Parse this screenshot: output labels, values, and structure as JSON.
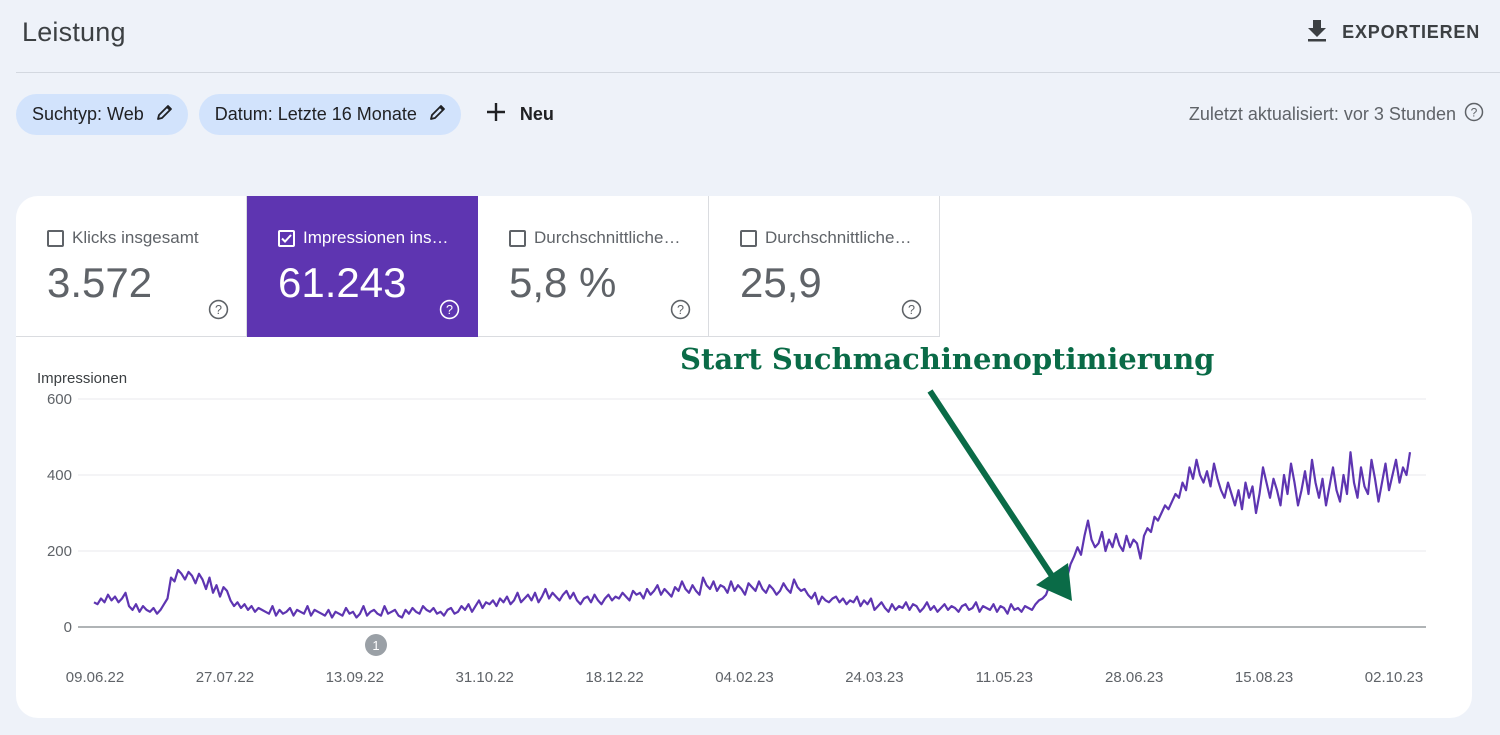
{
  "header": {
    "title": "Leistung",
    "export_label": "EXPORTIEREN"
  },
  "filters": {
    "chips": [
      {
        "label": "Suchtyp: Web"
      },
      {
        "label": "Datum: Letzte 16 Monate"
      }
    ],
    "new_label": "Neu",
    "updated": "Zuletzt aktualisiert: vor 3 Stunden"
  },
  "metrics": [
    {
      "label": "Klicks insgesamt",
      "value": "3.572",
      "checked": false
    },
    {
      "label": "Impressionen ins…",
      "value": "61.243",
      "checked": true
    },
    {
      "label": "Durchschnittliche…",
      "value": "5,8 %",
      "checked": false
    },
    {
      "label": "Durchschnittliche…",
      "value": "25,9",
      "checked": false
    }
  ],
  "annotation": {
    "text": "Start Suchmachinenoptimierung",
    "marker": "1",
    "color": "#0a6b47"
  },
  "colors": {
    "accent": "#5e35b1",
    "chip": "#d2e3fc",
    "line": "#5e35b1"
  },
  "chart_data": {
    "type": "line",
    "title": "",
    "ylabel": "Impressionen",
    "ylim": [
      0,
      600
    ],
    "yticks": [
      "0",
      "200",
      "400",
      "600"
    ],
    "xtick_labels": [
      "09.06.22",
      "27.07.22",
      "13.09.22",
      "31.10.22",
      "18.12.22",
      "04.02.23",
      "24.03.23",
      "11.05.23",
      "28.06.23",
      "15.08.23",
      "02.10.23"
    ],
    "x_start": "09.06.22",
    "x_end": "02.10.23",
    "series": [
      {
        "values": [
          65,
          60,
          75,
          65,
          85,
          70,
          80,
          65,
          75,
          90,
          55,
          45,
          60,
          40,
          55,
          45,
          40,
          50,
          35,
          45,
          60,
          75,
          130,
          120,
          150,
          140,
          125,
          145,
          135,
          115,
          140,
          125,
          100,
          130,
          90,
          110,
          80,
          105,
          95,
          70,
          55,
          65,
          50,
          60,
          45,
          55,
          40,
          50,
          45,
          40,
          35,
          55,
          30,
          45,
          35,
          40,
          50,
          30,
          45,
          40,
          35,
          55,
          30,
          45,
          40,
          35,
          30,
          45,
          25,
          40,
          35,
          30,
          50,
          35,
          40,
          25,
          35,
          55,
          30,
          40,
          45,
          35,
          30,
          55,
          35,
          40,
          45,
          30,
          25,
          45,
          35,
          50,
          40,
          35,
          55,
          45,
          40,
          50,
          35,
          40,
          30,
          45,
          50,
          35,
          40,
          55,
          45,
          60,
          40,
          55,
          70,
          50,
          65,
          60,
          70,
          55,
          75,
          65,
          80,
          60,
          70,
          90,
          65,
          75,
          85,
          70,
          90,
          65,
          80,
          100,
          75,
          90,
          80,
          70,
          85,
          95,
          75,
          90,
          70,
          60,
          75,
          80,
          65,
          85,
          70,
          60,
          75,
          85,
          70,
          80,
          75,
          90,
          80,
          70,
          95,
          85,
          90,
          75,
          100,
          85,
          95,
          110,
          85,
          100,
          90,
          80,
          105,
          95,
          120,
          100,
          90,
          110,
          95,
          85,
          130,
          110,
          100,
          120,
          95,
          110,
          105,
          90,
          120,
          95,
          110,
          100,
          85,
          115,
          105,
          95,
          120,
          100,
          90,
          110,
          100,
          85,
          95,
          115,
          100,
          90,
          125,
          105,
          95,
          100,
          85,
          75,
          90,
          60,
          80,
          70,
          65,
          75,
          80,
          65,
          75,
          60,
          70,
          65,
          80,
          55,
          70,
          60,
          75,
          45,
          55,
          65,
          50,
          40,
          60,
          45,
          55,
          50,
          65,
          45,
          60,
          55,
          40,
          50,
          65,
          45,
          55,
          40,
          50,
          60,
          45,
          55,
          50,
          40,
          55,
          60,
          45,
          50,
          65,
          40,
          55,
          50,
          45,
          60,
          40,
          55,
          50,
          35,
          60,
          45,
          50,
          40,
          55,
          50,
          45,
          60,
          70,
          75,
          85,
          110,
          100,
          120,
          140,
          150,
          130,
          165,
          185,
          210,
          190,
          240,
          280,
          230,
          210,
          220,
          250,
          200,
          230,
          210,
          245,
          215,
          200,
          240,
          210,
          230,
          220,
          180,
          240,
          260,
          250,
          290,
          280,
          300,
          320,
          310,
          330,
          350,
          340,
          380,
          360,
          420,
          390,
          440,
          400,
          380,
          410,
          370,
          430,
          390,
          360,
          340,
          380,
          350,
          320,
          360,
          310,
          380,
          340,
          370,
          300,
          350,
          420,
          380,
          340,
          390,
          360,
          320,
          400,
          350,
          430,
          380,
          320,
          360,
          410,
          350,
          440,
          380,
          340,
          390,
          320,
          370,
          420,
          360,
          330,
          400,
          350,
          460,
          380,
          340,
          420,
          370,
          350,
          440,
          390,
          330,
          380,
          430,
          360,
          400,
          440,
          380,
          420,
          400,
          460
        ]
      }
    ]
  }
}
